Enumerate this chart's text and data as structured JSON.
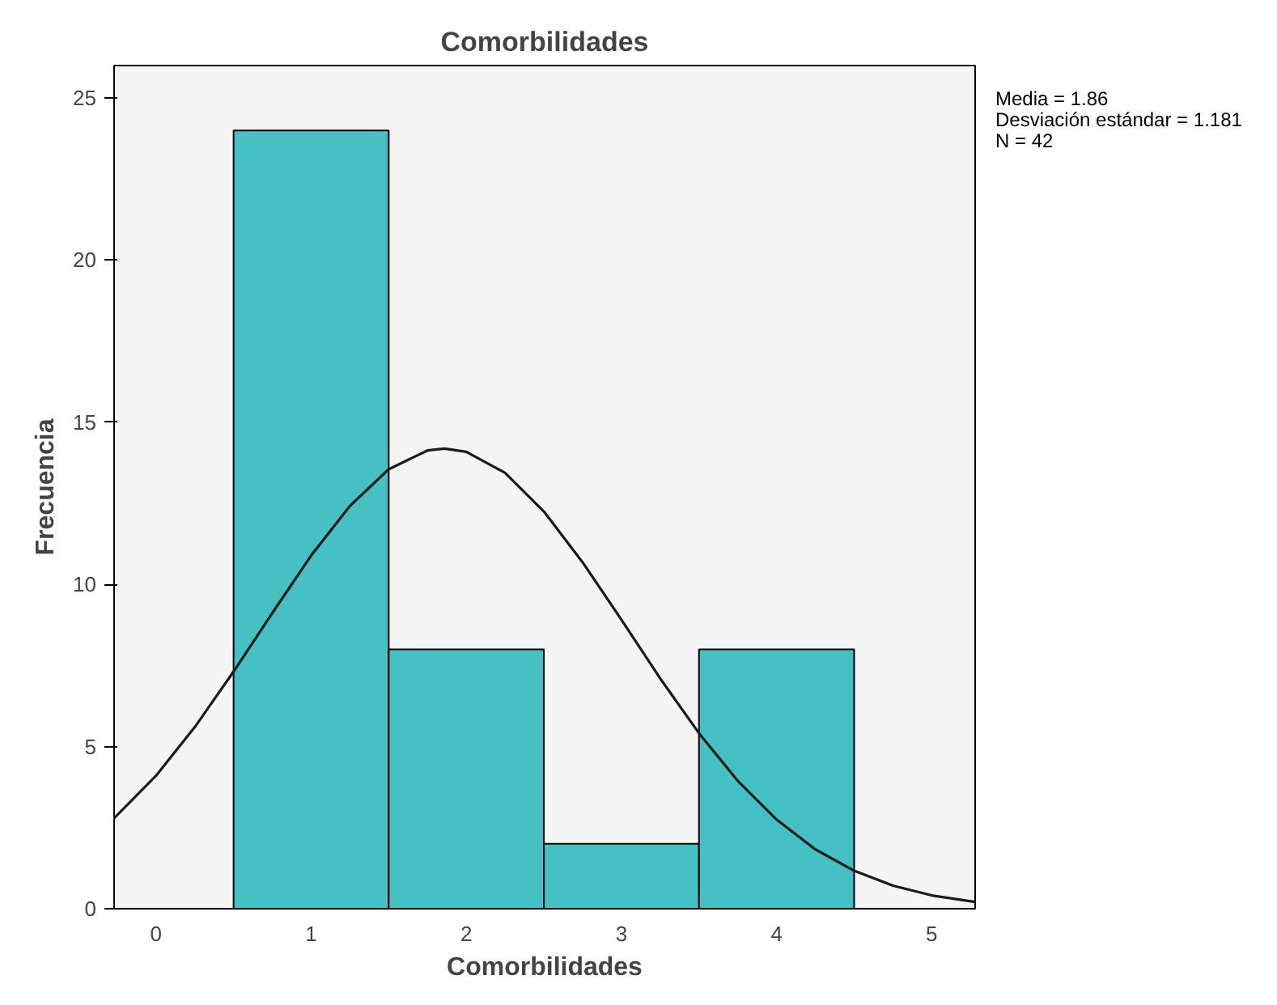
{
  "chart_data": {
    "type": "histogram",
    "title": "Comorbilidades",
    "xlabel": "Comorbilidades",
    "ylabel": "Frecuencia",
    "bins": [
      0.5,
      1.5,
      2.5,
      3.5,
      4.5
    ],
    "values": [
      24,
      8,
      2,
      8
    ],
    "color": "#45c1c4",
    "series": [
      {
        "type": "line",
        "color": "#1a1a1a",
        "x": [
          -0.27,
          0,
          0.25,
          0.5,
          0.75,
          1.0,
          1.25,
          1.5,
          1.75,
          1.86,
          2.0,
          2.25,
          2.5,
          2.75,
          3.0,
          3.25,
          3.5,
          3.75,
          4.0,
          4.25,
          4.5,
          4.75,
          5.0,
          5.28
        ],
        "values": [
          2.79,
          4.1,
          5.6,
          7.31,
          9.12,
          10.89,
          12.42,
          13.55,
          14.13,
          14.19,
          14.09,
          13.44,
          12.25,
          10.68,
          8.91,
          7.1,
          5.41,
          3.94,
          2.75,
          1.83,
          1.17,
          0.71,
          0.41,
          0.21
        ]
      }
    ],
    "xlim": [
      -0.27,
      5.28
    ],
    "ylim": [
      0,
      26
    ],
    "xticks": [
      0,
      1,
      2,
      3,
      4,
      5
    ],
    "yticks": [
      0,
      5,
      10,
      15,
      20,
      25
    ],
    "grid": false,
    "annotations": [
      "Media = 1.86",
      "Desviación estándar = 1.181",
      "N = 42"
    ]
  }
}
